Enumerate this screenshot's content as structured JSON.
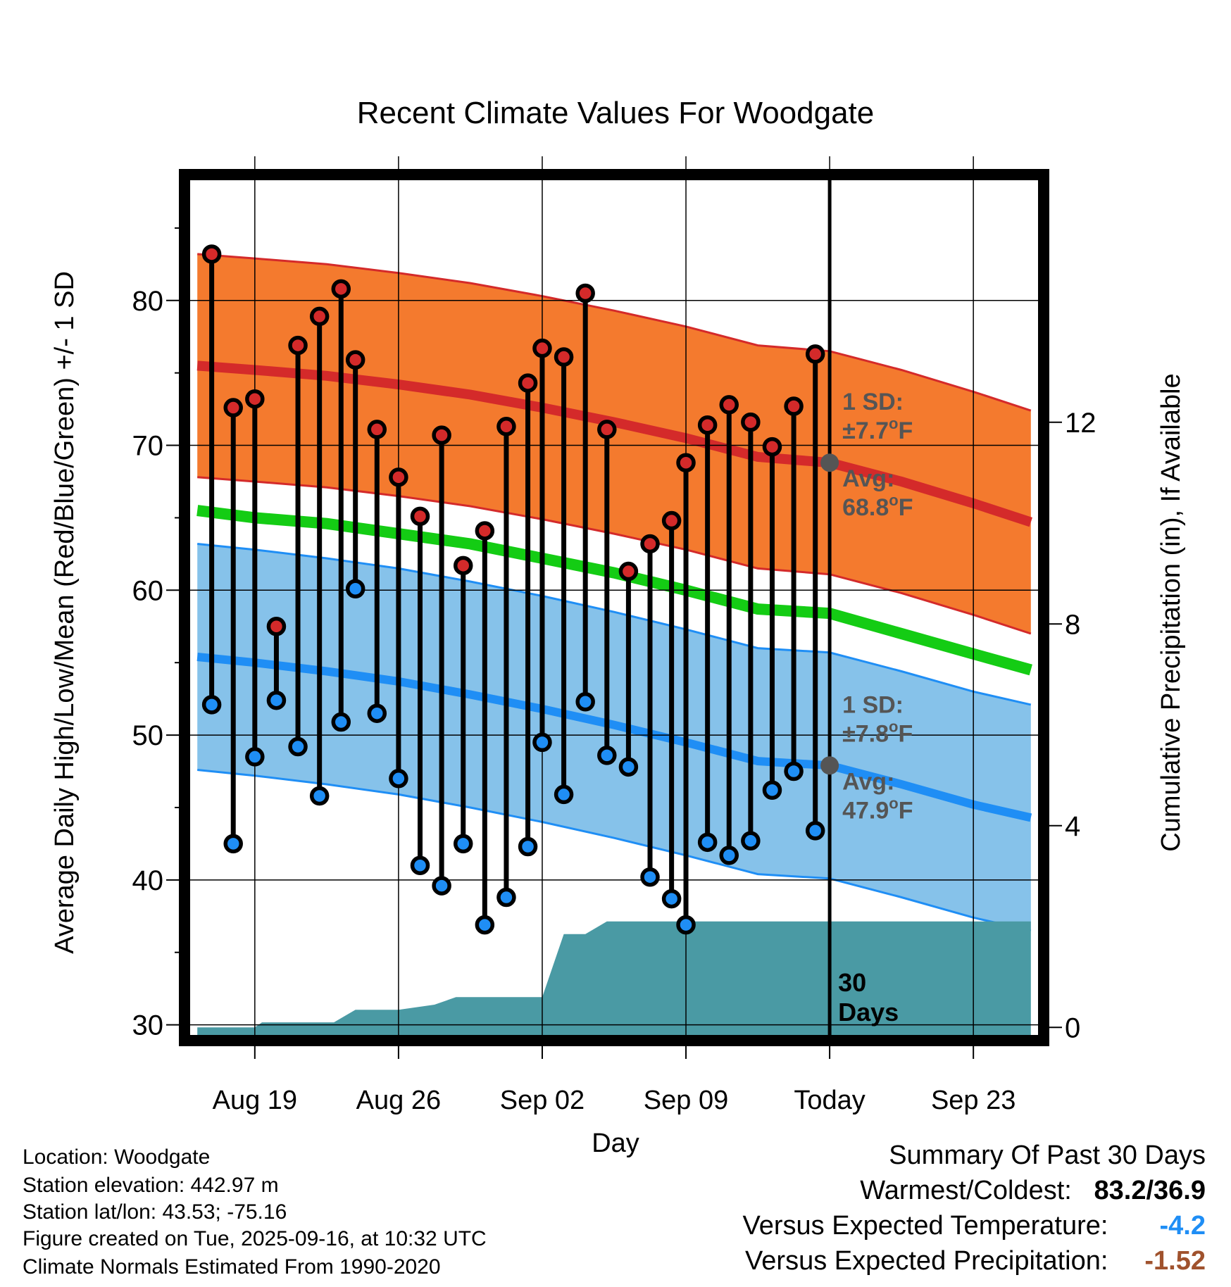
{
  "chart_data": {
    "type": "line",
    "title": "Recent Climate Values For Woodgate",
    "xlabel": "Day",
    "ylabel": "Average Daily High/Low/Mean (Red/Blue/Green) +/- 1 SD",
    "ylabel_right": "Cumulative Precipitation (in), If Available",
    "xlim": [
      -4.5,
      54.5
    ],
    "ylim": [
      29.3,
      88.3
    ],
    "ylim_right": [
      -0.15,
      16.8
    ],
    "x_ticks": [
      {
        "x": 0,
        "label": "Aug 19"
      },
      {
        "x": 10,
        "label": "Aug 26"
      },
      {
        "x": 20,
        "label": "Sep 02"
      },
      {
        "x": 30,
        "label": "Sep 09"
      },
      {
        "x": 40,
        "label": "Today"
      },
      {
        "x": 50,
        "label": "Sep 23"
      }
    ],
    "y_ticks": [
      30,
      40,
      50,
      60,
      70,
      80
    ],
    "y_minor_ticks": [
      35,
      45,
      55,
      65,
      75,
      85
    ],
    "y_right_ticks": [
      0,
      4,
      8,
      12
    ],
    "today_x": 40,
    "days_x": [
      -3,
      -1.5,
      0,
      1.5,
      3,
      4.5,
      6,
      7,
      8.5,
      10,
      11.5,
      13,
      14.5,
      16,
      17.5,
      19,
      20,
      21.5,
      23,
      24.5,
      26,
      27.5,
      29,
      30,
      31.5,
      33,
      34.5,
      36,
      37.5,
      39
    ],
    "daily_high": [
      83.2,
      72.6,
      73.2,
      57.5,
      76.9,
      78.9,
      80.8,
      75.9,
      71.1,
      67.8,
      65.1,
      70.7,
      61.7,
      64.1,
      71.3,
      74.3,
      76.7,
      76.1,
      80.5,
      71.1,
      61.3,
      63.2,
      64.8,
      68.8,
      71.4,
      72.8,
      71.6,
      69.9,
      72.7,
      76.3
    ],
    "daily_low": [
      52.1,
      42.5,
      48.5,
      52.4,
      49.2,
      45.8,
      50.9,
      60.1,
      51.5,
      47.0,
      41.0,
      39.6,
      42.5,
      36.9,
      38.8,
      42.3,
      49.5,
      45.9,
      52.3,
      48.6,
      47.8,
      40.2,
      38.7,
      36.9,
      42.6,
      41.7,
      42.7,
      46.2,
      47.5,
      43.4
    ],
    "normal_x": [
      -4,
      0,
      5,
      10,
      15,
      20,
      25,
      30,
      35,
      40,
      45,
      50,
      54
    ],
    "normal_high": [
      75.5,
      75.2,
      74.8,
      74.2,
      73.5,
      72.6,
      71.6,
      70.5,
      69.2,
      68.8,
      67.5,
      66.0,
      64.7
    ],
    "normal_high_sd": 7.7,
    "normal_low": [
      55.4,
      55.0,
      54.4,
      53.7,
      52.8,
      51.8,
      50.7,
      49.5,
      48.2,
      47.9,
      46.6,
      45.2,
      44.3
    ],
    "normal_low_sd": 7.8,
    "normal_mean": [
      65.5,
      65.0,
      64.6,
      63.9,
      63.2,
      62.2,
      61.2,
      60.0,
      58.7,
      58.4,
      57.0,
      55.6,
      54.5
    ],
    "precip_x": [
      -4,
      0,
      0.5,
      5.5,
      7,
      10,
      12.5,
      14,
      20,
      21.5,
      23,
      24.5,
      26,
      40,
      54
    ],
    "precip": [
      0,
      0,
      0.1,
      0.1,
      0.35,
      0.35,
      0.45,
      0.6,
      0.6,
      1.85,
      1.85,
      2.1,
      2.1,
      2.1,
      2.1
    ],
    "annotations": {
      "high_sd_label": "1 SD:",
      "high_sd_value": "±7.7",
      "high_avg_label": "Avg:",
      "high_avg_value": "68.8",
      "low_sd_label": "1 SD:",
      "low_sd_value": "±7.8",
      "low_avg_label": "Avg:",
      "low_avg_value": "47.9",
      "degree": "o",
      "unit": "F",
      "days_line1": "30",
      "days_line2": "Days"
    },
    "colors": {
      "high_band": "#f47a2e",
      "high_line": "#d42a2a",
      "low_band": "#86c2ea",
      "low_line": "#1f8ef5",
      "mean_line": "#14cc14",
      "precip": "#4a9aa4",
      "high_marker": "#d42a2a",
      "low_marker": "#1f8ef5",
      "avg_marker": "#555555",
      "annotation_text": "#555555"
    }
  },
  "info": {
    "location": "Location: Woodgate",
    "elevation": "Station elevation: 442.97 m",
    "latlon": "Station lat/lon: 43.53; -75.16",
    "created": "Figure created on Tue, 2025-09-16, at 10:32 UTC",
    "normals": "Climate Normals Estimated From 1990-2020"
  },
  "summary": {
    "title": "Summary Of Past 30 Days",
    "warm_cold_label": "Warmest/Coldest:",
    "warm_cold_value": "83.2/36.9",
    "temp_label": "Versus Expected Temperature:",
    "temp_value": "-4.2",
    "precip_label": "Versus Expected Precipitation:",
    "precip_value": "-1.52",
    "temp_color": "#1f8ef5",
    "precip_color": "#a0522d"
  }
}
